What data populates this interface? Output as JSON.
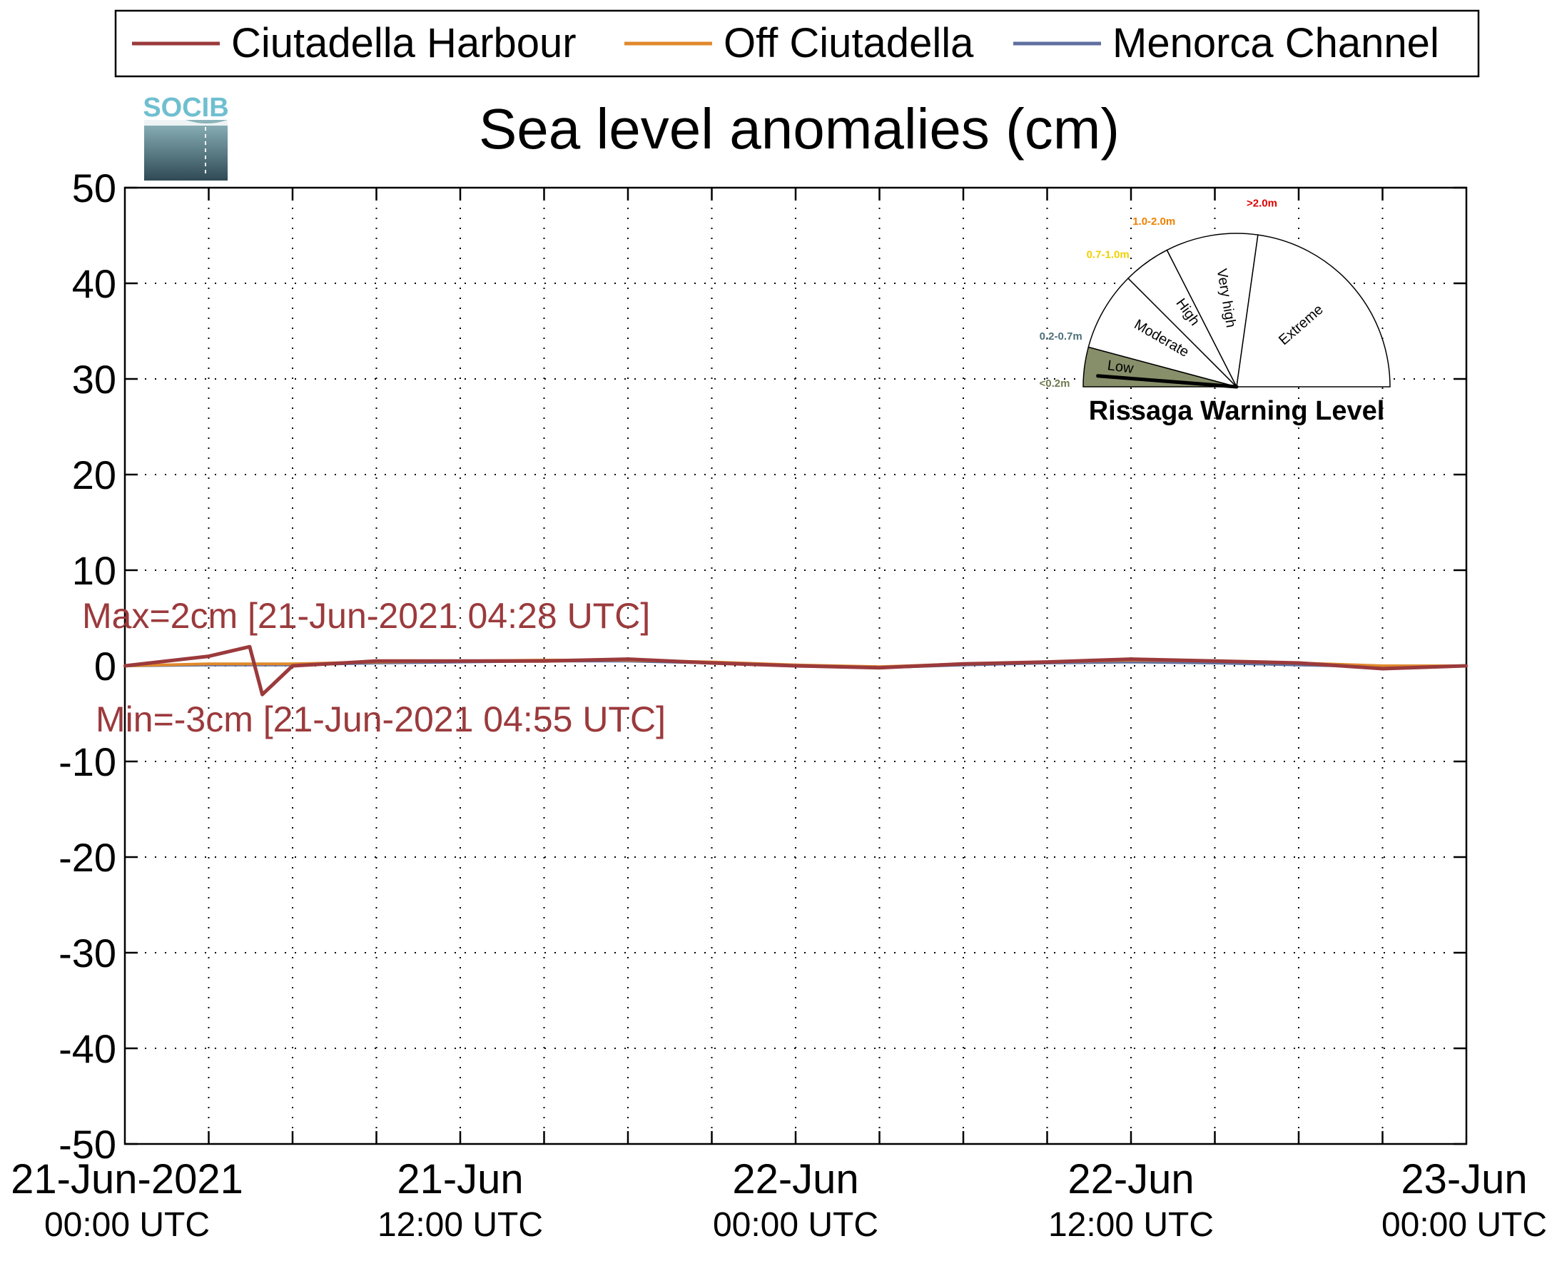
{
  "chart_data": {
    "type": "line",
    "title": "Sea level anomalies (cm)",
    "logo_text": "SOCIB",
    "xlabel": "",
    "ylabel": "",
    "ylim": [
      -50,
      50
    ],
    "yticks": [
      50,
      40,
      30,
      20,
      10,
      0,
      -10,
      -20,
      -30,
      -40,
      -50
    ],
    "xlim": [
      "2021-06-21 00:00",
      "2021-06-23 00:00"
    ],
    "xticks": [
      {
        "line1": "21-Jun-2021",
        "line2": "00:00 UTC",
        "t": "2021-06-21 00:00"
      },
      {
        "line1": "21-Jun",
        "line2": "12:00 UTC",
        "t": "2021-06-21 12:00"
      },
      {
        "line1": "22-Jun",
        "line2": "00:00 UTC",
        "t": "2021-06-22 00:00"
      },
      {
        "line1": "22-Jun",
        "line2": "12:00 UTC",
        "t": "2021-06-22 12:00"
      },
      {
        "line1": "23-Jun",
        "line2": "00:00 UTC",
        "t": "2021-06-23 00:00"
      }
    ],
    "grid": true,
    "legend_position": "top",
    "series": [
      {
        "name": "Ciutadella Harbour",
        "color": "#9b3a3c",
        "t": [
          "2021-06-21 00:00",
          "2021-06-21 03:00",
          "2021-06-21 04:28",
          "2021-06-21 04:55",
          "2021-06-21 06:00",
          "2021-06-21 09:00",
          "2021-06-21 12:00",
          "2021-06-21 15:00",
          "2021-06-21 18:00",
          "2021-06-21 21:00",
          "2021-06-22 00:00",
          "2021-06-22 03:00",
          "2021-06-22 06:00",
          "2021-06-22 09:00",
          "2021-06-22 12:00",
          "2021-06-22 15:00",
          "2021-06-22 18:00",
          "2021-06-22 21:00",
          "2021-06-23 00:00"
        ],
        "values": [
          0,
          1,
          2,
          -3,
          0,
          0.5,
          0.5,
          0.5,
          0.7,
          0.3,
          0,
          -0.2,
          0.2,
          0.4,
          0.7,
          0.5,
          0.3,
          -0.3,
          0
        ]
      },
      {
        "name": "Off Ciutadella",
        "color": "#e08a2c",
        "t": [
          "2021-06-21 00:00",
          "2021-06-21 03:00",
          "2021-06-21 06:00",
          "2021-06-21 09:00",
          "2021-06-21 12:00",
          "2021-06-21 15:00",
          "2021-06-21 18:00",
          "2021-06-21 21:00",
          "2021-06-22 00:00",
          "2021-06-22 03:00",
          "2021-06-22 06:00",
          "2021-06-22 09:00",
          "2021-06-22 12:00",
          "2021-06-22 15:00",
          "2021-06-22 18:00",
          "2021-06-22 21:00",
          "2021-06-23 00:00"
        ],
        "values": [
          0,
          0.2,
          0.2,
          0.4,
          0.5,
          0.6,
          0.6,
          0.4,
          0.1,
          -0.1,
          0.2,
          0.4,
          0.6,
          0.5,
          0.3,
          0,
          0
        ]
      },
      {
        "name": "Menorca Channel",
        "color": "#5f6fa0",
        "t": [
          "2021-06-21 00:00",
          "2021-06-21 03:00",
          "2021-06-21 06:00",
          "2021-06-21 09:00",
          "2021-06-21 12:00",
          "2021-06-21 15:00",
          "2021-06-21 18:00",
          "2021-06-21 21:00",
          "2021-06-22 00:00",
          "2021-06-22 03:00",
          "2021-06-22 06:00",
          "2021-06-22 09:00",
          "2021-06-22 12:00",
          "2021-06-22 15:00",
          "2021-06-22 18:00",
          "2021-06-22 21:00",
          "2021-06-23 00:00"
        ],
        "values": [
          0,
          0.1,
          0.1,
          0.3,
          0.4,
          0.5,
          0.5,
          0.3,
          0,
          -0.2,
          0.1,
          0.3,
          0.4,
          0.3,
          0.1,
          -0.1,
          0
        ]
      }
    ],
    "annotations": [
      {
        "text": "Max=2cm [21-Jun-2021 04:28 UTC]",
        "color": "#9b3a3c"
      },
      {
        "text": "Min=-3cm [21-Jun-2021 04:55 UTC]",
        "color": "#9b3a3c"
      }
    ],
    "gauge": {
      "title": "Rissaga Warning Level",
      "current_level": "Low",
      "sectors": [
        {
          "label": "Low",
          "range": "<0.2m",
          "range_color": "#6f7a50",
          "fill": "#878f6a"
        },
        {
          "label": "Moderate",
          "range": "0.2-0.7m",
          "range_color": "#4f6f7a",
          "fill": "#ffffff"
        },
        {
          "label": "High",
          "range": "0.7-1.0m",
          "range_color": "#f0d000",
          "fill": "#ffffff"
        },
        {
          "label": "Very high",
          "range": "1.0-2.0m",
          "range_color": "#f08000",
          "fill": "#ffffff"
        },
        {
          "label": "Extreme",
          "range": ">2.0m",
          "range_color": "#e00000",
          "fill": "#ffffff"
        }
      ]
    }
  }
}
